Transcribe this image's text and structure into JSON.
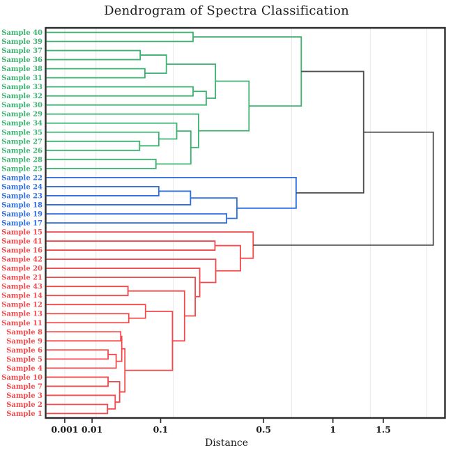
{
  "chart_data": {
    "type": "dendrogram",
    "title": "Dendrogram of Spectra Classification",
    "xlabel": "Distance",
    "n_leaves": 43,
    "x_scale": {
      "type": "power",
      "exponent": 0.4,
      "range": [
        0,
        2.2
      ]
    },
    "x_ticks": [
      {
        "label": "0.001",
        "value": 0.001
      },
      {
        "label": "0.01",
        "value": 0.01
      },
      {
        "label": "0.1",
        "value": 0.1
      },
      {
        "label": "0.5",
        "value": 0.5
      },
      {
        "label": "1",
        "value": 1
      },
      {
        "label": "1.5",
        "value": 1.5
      }
    ],
    "x_gridlines": [
      0.001,
      0.0123,
      0.13,
      0.677,
      1.36,
      2.03
    ],
    "colors": {
      "green_cluster": "#3cb371",
      "blue_cluster": "#2d6fe1",
      "red_cluster": "#f24a4c",
      "link_gray": "#4d4d4d",
      "gridline": "#ebebeb",
      "border": "#2b2b2b",
      "text": "#1c1c1c"
    },
    "clusters": {
      "green": [
        "Sample 40",
        "Sample 39",
        "Sample 37",
        "Sample 36",
        "Sample 38",
        "Sample 31",
        "Sample 33",
        "Sample 32",
        "Sample 30",
        "Sample 29",
        "Sample 34",
        "Sample 35",
        "Sample 27",
        "Sample 26",
        "Sample 28",
        "Sample 25"
      ],
      "blue": [
        "Sample 22",
        "Sample 24",
        "Sample 23",
        "Sample 18",
        "Sample 19",
        "Sample 17"
      ],
      "red": [
        "Sample 15",
        "Sample 41",
        "Sample 16",
        "Sample 42",
        "Sample 20",
        "Sample 21",
        "Sample 43",
        "Sample 14",
        "Sample 12",
        "Sample 13",
        "Sample 11",
        "Sample 8",
        "Sample 9",
        "Sample 6",
        "Sample 5",
        "Sample 4",
        "Sample 10",
        "Sample 7",
        "Sample 3",
        "Sample 2",
        "Sample 1"
      ]
    },
    "tree": {
      "d": 2.12,
      "color": "gray",
      "children": [
        {
          "d": 1.29,
          "color": "gray",
          "children": [
            {
              "d": 0.746,
              "color": "green",
              "children": [
                {
                  "d": 0.187,
                  "children": [
                    {
                      "leaf": "Sample 40"
                    },
                    {
                      "leaf": "Sample 39"
                    }
                  ]
                },
                {
                  "d": 0.42,
                  "children": [
                    {
                      "d": 0.267,
                      "children": [
                        {
                          "d": 0.113,
                          "children": [
                            {
                              "d": 0.061,
                              "children": [
                                {
                                  "leaf": "Sample 37"
                                },
                                {
                                  "leaf": "Sample 36"
                                }
                              ]
                            },
                            {
                              "d": 0.069,
                              "children": [
                                {
                                  "leaf": "Sample 38"
                                },
                                {
                                  "leaf": "Sample 31"
                                }
                              ]
                            }
                          ]
                        },
                        {
                          "d": 0.232,
                          "children": [
                            {
                              "d": 0.187,
                              "children": [
                                {
                                  "leaf": "Sample 33"
                                },
                                {
                                  "leaf": "Sample 32"
                                }
                              ]
                            },
                            {
                              "leaf": "Sample 30"
                            }
                          ]
                        }
                      ]
                    },
                    {
                      "d": 0.205,
                      "children": [
                        {
                          "leaf": "Sample 29"
                        },
                        {
                          "d": 0.18,
                          "children": [
                            {
                              "d": 0.139,
                              "children": [
                                {
                                  "leaf": "Sample 34"
                                },
                                {
                                  "d": 0.096,
                                  "children": [
                                    {
                                      "leaf": "Sample 35"
                                    },
                                    {
                                      "d": 0.06,
                                      "children": [
                                        {
                                          "leaf": "Sample 27"
                                        },
                                        {
                                          "leaf": "Sample 26"
                                        }
                                      ]
                                    }
                                  ]
                                }
                              ]
                            },
                            {
                              "d": 0.09,
                              "children": [
                                {
                                  "leaf": "Sample 28"
                                },
                                {
                                  "leaf": "Sample 25"
                                }
                              ]
                            }
                          ]
                        }
                      ]
                    }
                  ]
                }
              ]
            },
            {
              "d": 0.709,
              "color": "blue",
              "children": [
                {
                  "leaf": "Sample 22"
                },
                {
                  "d": 0.36,
                  "children": [
                    {
                      "d": 0.179,
                      "children": [
                        {
                          "d": 0.096,
                          "children": [
                            {
                              "leaf": "Sample 24"
                            },
                            {
                              "leaf": "Sample 23"
                            }
                          ]
                        },
                        {
                          "leaf": "Sample 18"
                        }
                      ]
                    },
                    {
                      "d": 0.313,
                      "children": [
                        {
                          "leaf": "Sample 19"
                        },
                        {
                          "leaf": "Sample 17"
                        }
                      ]
                    }
                  ]
                }
              ]
            }
          ]
        },
        {
          "d": 0.442,
          "color": "red",
          "children": [
            {
              "leaf": "Sample 15"
            },
            {
              "d": 0.377,
              "children": [
                {
                  "d": 0.265,
                  "children": [
                    {
                      "leaf": "Sample 41"
                    },
                    {
                      "leaf": "Sample 16"
                    }
                  ]
                },
                {
                  "d": 0.268,
                  "children": [
                    {
                      "leaf": "Sample 42"
                    },
                    {
                      "d": 0.209,
                      "children": [
                        {
                          "leaf": "Sample 20"
                        },
                        {
                          "d": 0.194,
                          "children": [
                            {
                              "leaf": "Sample 21"
                            },
                            {
                              "d": 0.161,
                              "children": [
                                {
                                  "d": 0.043,
                                  "children": [
                                    {
                                      "leaf": "Sample 43"
                                    },
                                    {
                                      "leaf": "Sample 14"
                                    }
                                  ]
                                },
                                {
                                  "d": 0.128,
                                  "children": [
                                    {
                                      "d": 0.07,
                                      "children": [
                                        {
                                          "leaf": "Sample 12"
                                        },
                                        {
                                          "d": 0.044,
                                          "children": [
                                            {
                                              "leaf": "Sample 13"
                                            },
                                            {
                                              "leaf": "Sample 11"
                                            }
                                          ]
                                        }
                                      ]
                                    },
                                    {
                                      "d": 0.039,
                                      "children": [
                                        {
                                          "d": 0.0352,
                                          "children": [
                                            {
                                              "d": 0.034,
                                              "children": [
                                                {
                                                  "leaf": "Sample 8"
                                                },
                                                {
                                                  "leaf": "Sample 9"
                                                }
                                              ]
                                            },
                                            {
                                              "d": 0.029,
                                              "children": [
                                                {
                                                  "d": 0.0213,
                                                  "children": [
                                                    {
                                                      "leaf": "Sample 6"
                                                    },
                                                    {
                                                      "leaf": "Sample 5"
                                                    }
                                                  ]
                                                },
                                                {
                                                  "leaf": "Sample 4"
                                                }
                                              ]
                                            }
                                          ]
                                        },
                                        {
                                          "d": 0.0328,
                                          "children": [
                                            {
                                              "d": 0.0213,
                                              "children": [
                                                {
                                                  "leaf": "Sample 10"
                                                },
                                                {
                                                  "leaf": "Sample 7"
                                                }
                                              ]
                                            },
                                            {
                                              "d": 0.028,
                                              "children": [
                                                {
                                                  "leaf": "Sample 3"
                                                },
                                                {
                                                  "d": 0.0208,
                                                  "children": [
                                                    {
                                                      "leaf": "Sample 2"
                                                    },
                                                    {
                                                      "leaf": "Sample 1"
                                                    }
                                                  ]
                                                }
                                              ]
                                            }
                                          ]
                                        }
                                      ]
                                    }
                                  ]
                                }
                              ]
                            }
                          ]
                        }
                      ]
                    }
                  ]
                }
              ]
            }
          ]
        }
      ]
    }
  }
}
